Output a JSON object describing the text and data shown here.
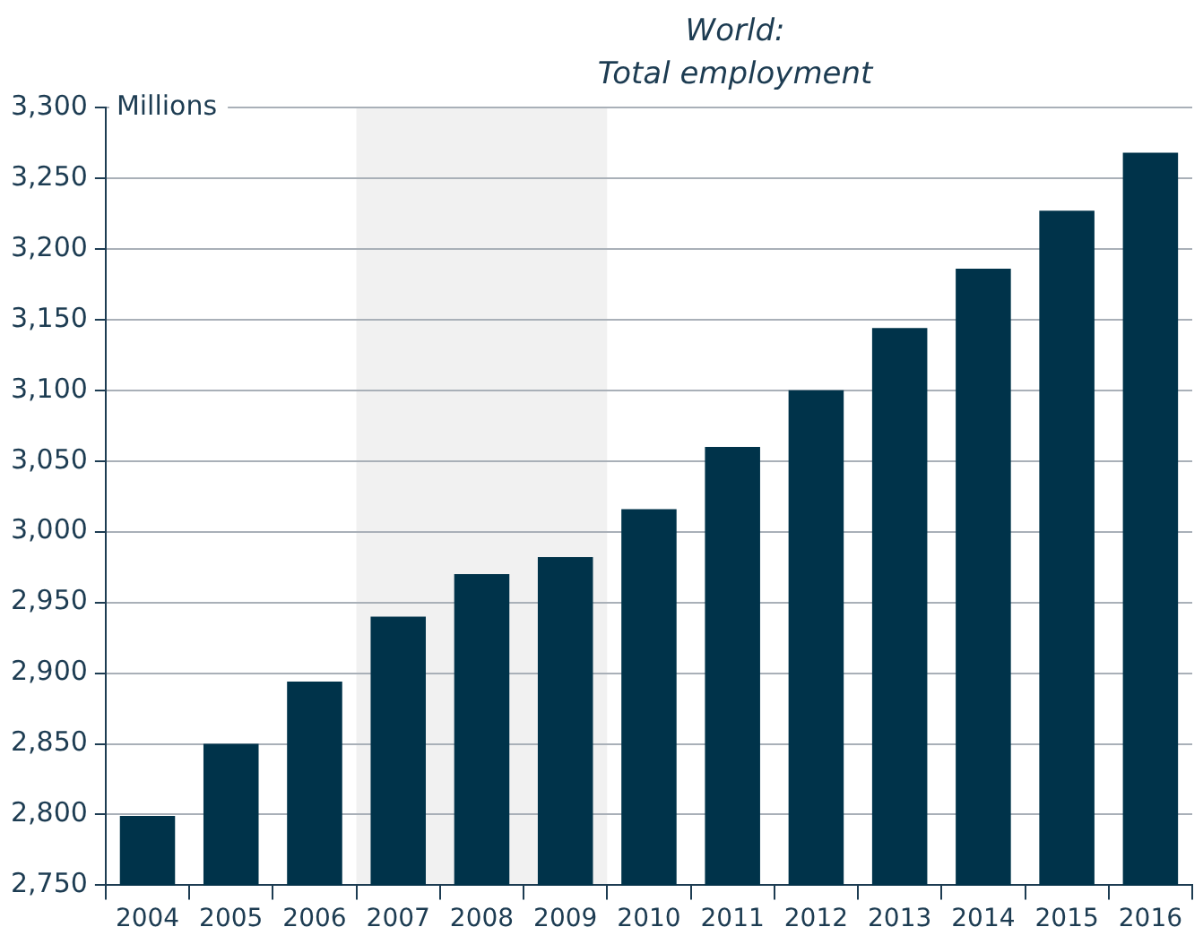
{
  "chart_data": {
    "type": "bar",
    "title": "World:\nTotal employment",
    "ylabel": "Millions",
    "categories": [
      "2004",
      "2005",
      "2006",
      "2007",
      "2008",
      "2009",
      "2010",
      "2011",
      "2012",
      "2013",
      "2014",
      "2015",
      "2016"
    ],
    "values": [
      2799,
      2850,
      2894,
      2940,
      2970,
      2982,
      3016,
      3060,
      3100,
      3144,
      3186,
      3227,
      3268
    ],
    "color": "#00334a",
    "ylim": [
      2750,
      3300
    ],
    "yticks": [
      {
        "value": 2750,
        "label": "2,750"
      },
      {
        "value": 2800,
        "label": "2,800"
      },
      {
        "value": 2850,
        "label": "2,850"
      },
      {
        "value": 2900,
        "label": "2,900"
      },
      {
        "value": 2950,
        "label": "2,950"
      },
      {
        "value": 3000,
        "label": "3,000"
      },
      {
        "value": 3050,
        "label": "3,050"
      },
      {
        "value": 3100,
        "label": "3,100"
      },
      {
        "value": 3150,
        "label": "3,150"
      },
      {
        "value": 3200,
        "label": "3,200"
      },
      {
        "value": 3250,
        "label": "3,250"
      },
      {
        "value": 3300,
        "label": "3,300"
      }
    ],
    "grid": "y",
    "bands": [
      {
        "axis": "x",
        "from": "2007",
        "to": "2009",
        "color": "#f1f1f1"
      }
    ]
  }
}
